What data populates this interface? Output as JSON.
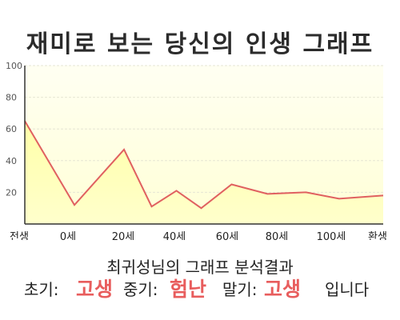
{
  "title": "재미로 보는 당신의 인생 그래프",
  "analysis_text": "최귀성님의 그래프 분석결과",
  "verdict": {
    "early_label": "초기:",
    "early_value": "고생",
    "mid_label": "중기:",
    "mid_value": "험난",
    "late_label": "말기:",
    "late_value": "고생",
    "ending": "입니다"
  },
  "chart_data": {
    "type": "area",
    "title": "재미로 보는 당신의 인생 그래프",
    "xlabel": "",
    "ylabel": "",
    "x_ticks": [
      "전생",
      "0세",
      "20세",
      "40세",
      "60세",
      "80세",
      "100세",
      "환생"
    ],
    "y_ticks": [
      20,
      40,
      60,
      80,
      100
    ],
    "ylim": [
      0,
      100
    ],
    "x_range": [
      -18,
      112
    ],
    "grid": true,
    "series": [
      {
        "x": [
          -18,
          0,
          18,
          28,
          37,
          46,
          57,
          70,
          84,
          96,
          112
        ],
        "values": [
          65,
          12,
          47,
          11,
          21,
          10,
          25,
          19,
          20,
          16,
          18
        ]
      }
    ],
    "colors": {
      "line": "#e06060",
      "fill_top": "#ffffc0",
      "bg_top": "#fffff0",
      "bg_bottom": "#ffffd8"
    }
  }
}
